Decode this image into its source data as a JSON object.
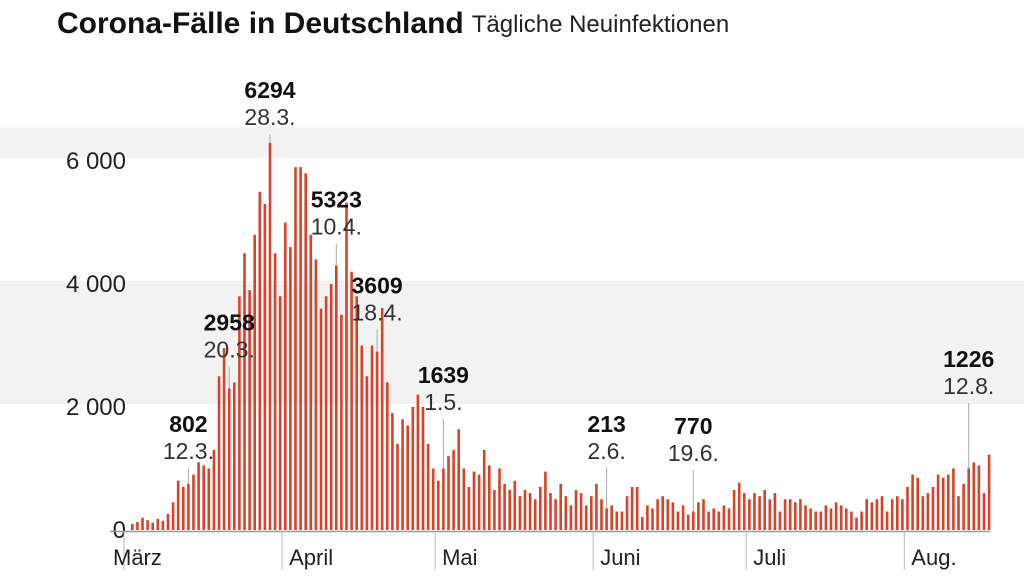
{
  "title": "Corona-Fälle in Deutschland",
  "subtitle": "Tägliche Neuinfektionen",
  "colors": {
    "bar": "#d5432c",
    "band": "#f2f2f2",
    "axis": "#999999",
    "text": "#222222"
  },
  "chart_data": {
    "type": "bar",
    "title": "Corona-Fälle in Deutschland",
    "subtitle": "Tägliche Neuinfektionen",
    "xlabel": "",
    "ylabel": "",
    "ylim": [
      0,
      6500
    ],
    "yticks": [
      0,
      2000,
      4000,
      6000
    ],
    "ytick_labels": [
      "0",
      "2 000",
      "4 000",
      "6 000"
    ],
    "grid": "alternating horizontal bands",
    "months": [
      {
        "label": "März",
        "date": "2020-03-01"
      },
      {
        "label": "April",
        "date": "2020-04-01"
      },
      {
        "label": "Mai",
        "date": "2020-05-01"
      },
      {
        "label": "Juni",
        "date": "2020-06-01"
      },
      {
        "label": "Juli",
        "date": "2020-07-01"
      },
      {
        "label": "Aug.",
        "date": "2020-08-01"
      }
    ],
    "start_date": "2020-03-01",
    "values": [
      100,
      130,
      200,
      160,
      120,
      180,
      150,
      260,
      450,
      802,
      700,
      750,
      900,
      1100,
      1050,
      1000,
      1300,
      2500,
      2958,
      2300,
      2400,
      3800,
      4500,
      3900,
      4800,
      5500,
      5300,
      6294,
      4500,
      3800,
      5000,
      4600,
      5900,
      5900,
      5800,
      4800,
      4400,
      3600,
      3800,
      4000,
      4300,
      3500,
      5323,
      4200,
      3800,
      3000,
      2500,
      3000,
      2900,
      3609,
      2400,
      1900,
      1400,
      1800,
      1700,
      2000,
      2200,
      2000,
      1400,
      1000,
      800,
      1000,
      1200,
      1300,
      1639,
      1000,
      700,
      950,
      900,
      1300,
      1050,
      650,
      1000,
      750,
      650,
      800,
      550,
      650,
      600,
      500,
      700,
      950,
      600,
      500,
      750,
      550,
      400,
      650,
      600,
      400,
      550,
      750,
      500,
      350,
      400,
      300,
      300,
      550,
      700,
      700,
      213,
      400,
      350,
      500,
      550,
      500,
      450,
      300,
      400,
      250,
      300,
      450,
      500,
      300,
      350,
      300,
      400,
      350,
      650,
      770,
      600,
      500,
      600,
      550,
      650,
      500,
      600,
      300,
      500,
      500,
      450,
      500,
      400,
      350,
      300,
      300,
      400,
      350,
      450,
      400,
      350,
      300,
      200,
      300,
      500,
      450,
      500,
      550,
      300,
      500,
      550,
      500,
      700,
      900,
      850,
      550,
      600,
      700,
      900,
      850,
      900,
      1000,
      550,
      750,
      1000,
      1100,
      1050,
      600,
      1226
    ],
    "annotations": [
      {
        "value": "802",
        "date": "12.3.",
        "day": 11
      },
      {
        "value": "2958",
        "date": "20.3.",
        "day": 19
      },
      {
        "value": "6294",
        "date": "28.3.",
        "day": 27
      },
      {
        "value": "5323",
        "date": "10.4.",
        "day": 40
      },
      {
        "value": "3609",
        "date": "18.4.",
        "day": 48
      },
      {
        "value": "1639",
        "date": "1.5.",
        "day": 61
      },
      {
        "value": "213",
        "date": "2.6.",
        "day": 93
      },
      {
        "value": "770",
        "date": "19.6.",
        "day": 110
      },
      {
        "value": "1226",
        "date": "12.8.",
        "day": 164
      }
    ]
  }
}
